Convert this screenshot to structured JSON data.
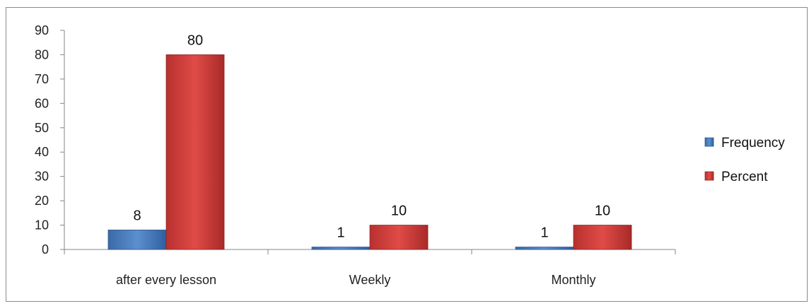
{
  "chart_data": {
    "type": "bar",
    "categories": [
      "after every lesson",
      "Weekly",
      "Monthly"
    ],
    "series": [
      {
        "name": "Frequency",
        "values": [
          8,
          1,
          1
        ]
      },
      {
        "name": "Percent",
        "values": [
          80,
          10,
          10
        ]
      }
    ],
    "ylim": [
      0,
      90
    ],
    "yticks": [
      0,
      10,
      20,
      30,
      40,
      50,
      60,
      70,
      80,
      90
    ],
    "data_labels": true,
    "grid": false,
    "legend": "right",
    "colors": {
      "Frequency": "#4f81bd",
      "Percent": "#c0504d"
    }
  }
}
